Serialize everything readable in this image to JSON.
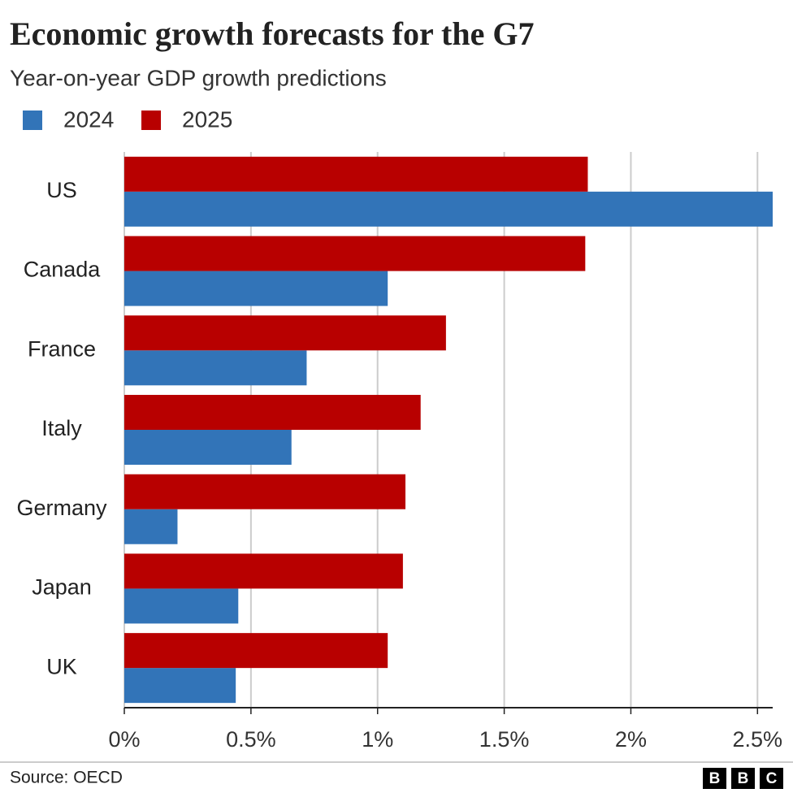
{
  "chart_data": {
    "type": "bar",
    "orientation": "horizontal",
    "title": "Economic growth forecasts for the G7",
    "subtitle": "Year-on-year GDP growth predictions",
    "categories": [
      "US",
      "Canada",
      "France",
      "Italy",
      "Germany",
      "Japan",
      "UK"
    ],
    "series": [
      {
        "name": "2024",
        "color": "#3274b8",
        "values": [
          2.56,
          1.04,
          0.72,
          0.66,
          0.21,
          0.45,
          0.44
        ]
      },
      {
        "name": "2025",
        "color": "#b80000",
        "values": [
          1.83,
          1.82,
          1.27,
          1.17,
          1.11,
          1.1,
          1.04
        ]
      }
    ],
    "xlim": [
      0,
      2.56
    ],
    "xticks": [
      {
        "value": 0,
        "label": "0%"
      },
      {
        "value": 0.5,
        "label": "0.5%"
      },
      {
        "value": 1,
        "label": "1%"
      },
      {
        "value": 1.5,
        "label": "1.5%"
      },
      {
        "value": 2,
        "label": "2%"
      },
      {
        "value": 2.5,
        "label": "2.5%"
      }
    ],
    "grid": true,
    "source": "Source: OECD",
    "logo": [
      "B",
      "B",
      "C"
    ]
  }
}
